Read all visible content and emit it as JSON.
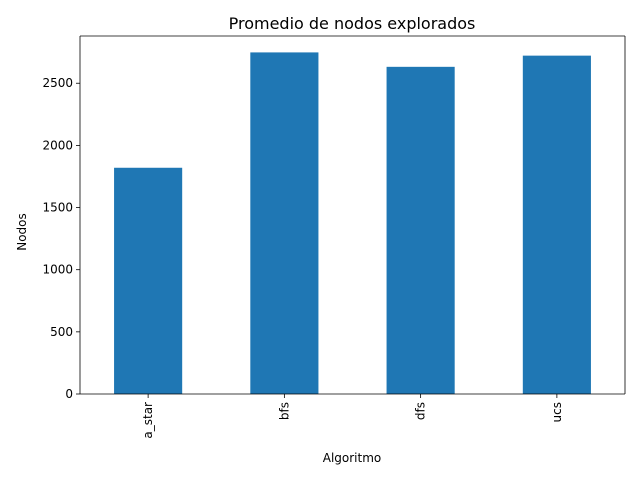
{
  "chart_data": {
    "type": "bar",
    "title": "Promedio de nodos explorados",
    "xlabel": "Algoritmo",
    "ylabel": "Nodos",
    "categories": [
      "a_star",
      "bfs",
      "dfs",
      "ucs"
    ],
    "values": [
      1820,
      2748,
      2632,
      2722
    ],
    "ylim": [
      0,
      2880
    ],
    "yticks": [
      0,
      500,
      1000,
      1500,
      2000,
      2500
    ],
    "ytick_labels": [
      "0",
      "500",
      "1000",
      "1500",
      "2000",
      "2500"
    ],
    "grid": false,
    "legend": "none",
    "bar_color": "#1f77b4"
  }
}
